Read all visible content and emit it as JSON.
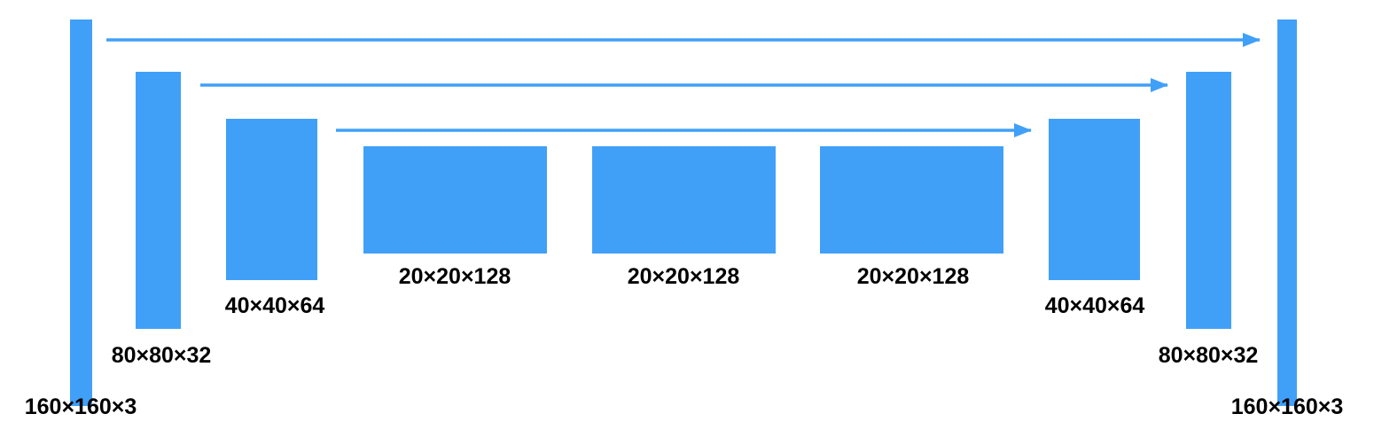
{
  "colors": {
    "block": "#40A0F8",
    "arrow": "#40A0F8",
    "text": "#000000",
    "background": "#FFFFFF"
  },
  "layers": [
    {
      "id": "enc-160",
      "label": "160×160×3"
    },
    {
      "id": "enc-80",
      "label": "80×80×32"
    },
    {
      "id": "enc-40",
      "label": "40×40×64"
    },
    {
      "id": "bottleneck-1",
      "label": "20×20×128"
    },
    {
      "id": "bottleneck-2",
      "label": "20×20×128"
    },
    {
      "id": "bottleneck-3",
      "label": "20×20×128"
    },
    {
      "id": "dec-40",
      "label": "40×40×64"
    },
    {
      "id": "dec-80",
      "label": "80×80×32"
    },
    {
      "id": "dec-160",
      "label": "160×160×3"
    }
  ],
  "skip_connections": [
    {
      "from": "enc-160",
      "to": "dec-160"
    },
    {
      "from": "enc-80",
      "to": "dec-80"
    },
    {
      "from": "enc-40",
      "to": "dec-40"
    }
  ]
}
